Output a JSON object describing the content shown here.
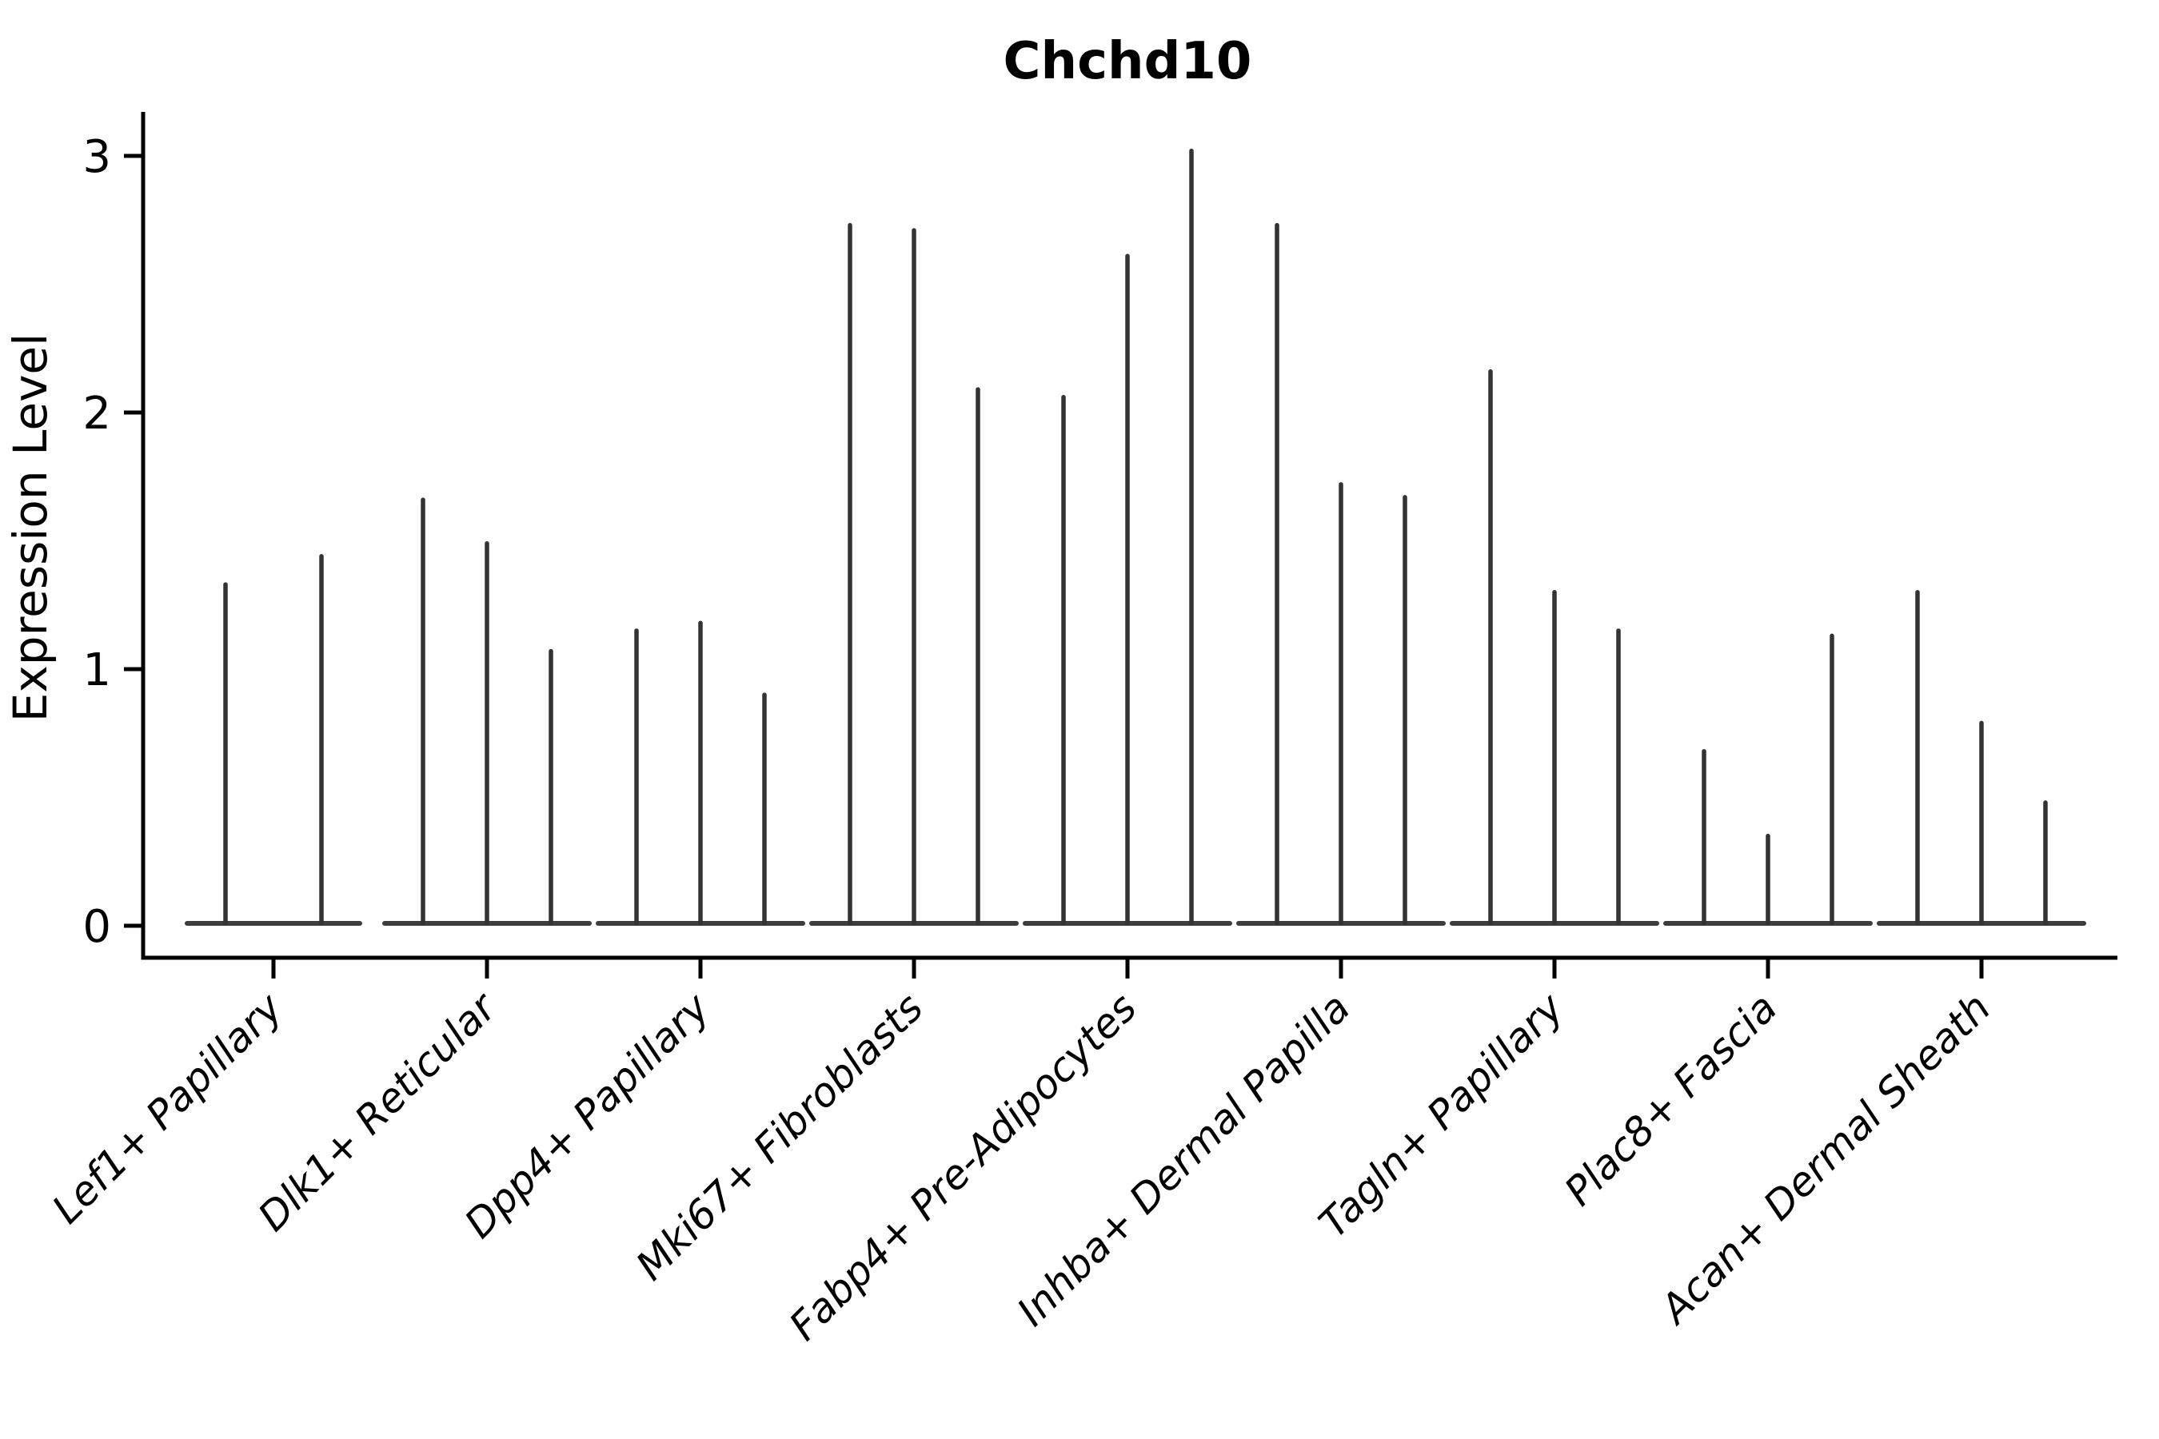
{
  "title": "Chchd10",
  "y_axis": {
    "label": "Expression Level",
    "ticks": [
      "0",
      "1",
      "2",
      "3"
    ]
  },
  "colors": {
    "background": "#ffffff",
    "axis": "#000000",
    "spike": "#333333",
    "baseline": "#3d3d3d",
    "text": "#000000"
  },
  "chart_data": {
    "type": "violin",
    "title": "Chchd10",
    "xlabel": "",
    "ylabel": "Expression Level",
    "ylim": [
      0,
      3.15
    ],
    "yticks": [
      0,
      1,
      2,
      3
    ],
    "grid": false,
    "legend": "none",
    "style_note": "sparse single-cell expression violins rendered as thin vertical spikes rising from a flat base at 0; 2-3 violins per cell-type category; x labels rotated 45deg italic",
    "categories": [
      "Lef1+ Papillary",
      "Dlk1+ Reticular",
      "Dpp4+ Papillary",
      "Mki67+ Fibroblasts",
      "Fabp4+ Pre-Adipocytes",
      "Inhba+ Dermal Papilla",
      "Tagln+ Papillary",
      "Plac8+ Fascia",
      "Acan+ Dermal Sheath"
    ],
    "groups": [
      {
        "category": "Lef1+ Papillary",
        "spike_max_values": [
          1.33,
          1.44
        ]
      },
      {
        "category": "Dlk1+ Reticular",
        "spike_max_values": [
          1.66,
          1.49,
          1.07
        ]
      },
      {
        "category": "Dpp4+ Papillary",
        "spike_max_values": [
          1.15,
          1.18,
          0.9
        ]
      },
      {
        "category": "Mki67+ Fibroblasts",
        "spike_max_values": [
          2.73,
          2.71,
          2.09
        ]
      },
      {
        "category": "Fabp4+ Pre-Adipocytes",
        "spike_max_values": [
          2.06,
          2.61,
          3.02
        ]
      },
      {
        "category": "Inhba+ Dermal Papilla",
        "spike_max_values": [
          2.73,
          1.72,
          1.67
        ]
      },
      {
        "category": "Tagln+ Papillary",
        "spike_max_values": [
          2.16,
          1.3,
          1.15
        ]
      },
      {
        "category": "Plac8+ Fascia",
        "spike_max_values": [
          0.68,
          0.35,
          1.13
        ]
      },
      {
        "category": "Acan+ Dermal Sheath",
        "spike_max_values": [
          1.3,
          0.79,
          0.48
        ]
      }
    ]
  }
}
